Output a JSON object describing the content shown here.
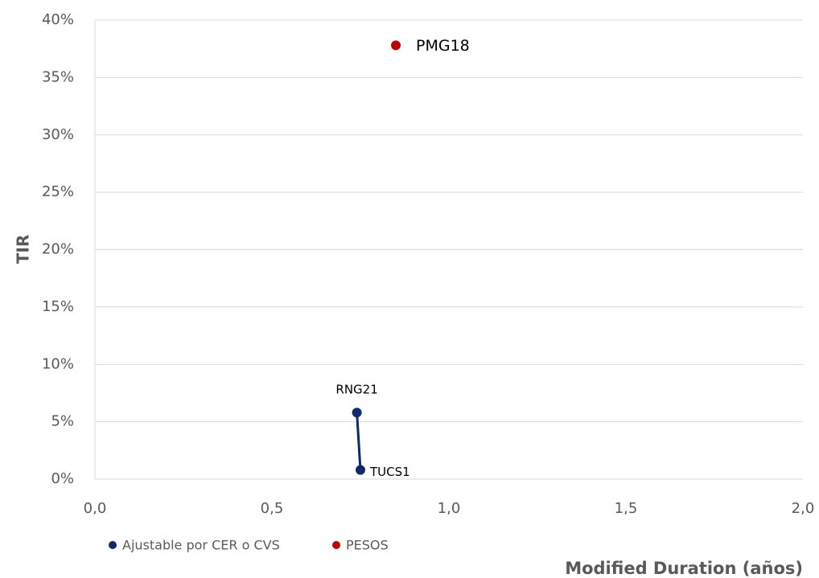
{
  "chart_data": {
    "type": "scatter",
    "x_label": "Modified Duration (años)",
    "y_label": "TIR",
    "xlim": [
      0,
      2
    ],
    "ylim": [
      0,
      40
    ],
    "xticks": [
      {
        "value": 0,
        "label": "0,0"
      },
      {
        "value": 0.5,
        "label": "0,5"
      },
      {
        "value": 1,
        "label": "1,0"
      },
      {
        "value": 1.5,
        "label": "1,5"
      },
      {
        "value": 2,
        "label": "2,0"
      }
    ],
    "yticks": [
      {
        "value": 0,
        "label": "0%"
      },
      {
        "value": 5,
        "label": "5%"
      },
      {
        "value": 10,
        "label": "10%"
      },
      {
        "value": 15,
        "label": "15%"
      },
      {
        "value": 20,
        "label": "20%"
      },
      {
        "value": 25,
        "label": "25%"
      },
      {
        "value": 30,
        "label": "30%"
      },
      {
        "value": 35,
        "label": "35%"
      },
      {
        "value": 40,
        "label": "40%"
      }
    ],
    "grid": true,
    "legend": "bottom",
    "series": [
      {
        "name": "Ajustable por CER o CVS",
        "color": "#0e2a6a",
        "line": true,
        "x": [
          0.74,
          0.75
        ],
        "values": [
          5.8,
          0.8
        ],
        "labels": [
          "RNG21",
          "TUCS1"
        ]
      },
      {
        "name": "PESOS",
        "color": "#c00000",
        "line": false,
        "x": [
          0.85
        ],
        "values": [
          37.8
        ],
        "labels": [
          "PMG18"
        ]
      }
    ]
  }
}
